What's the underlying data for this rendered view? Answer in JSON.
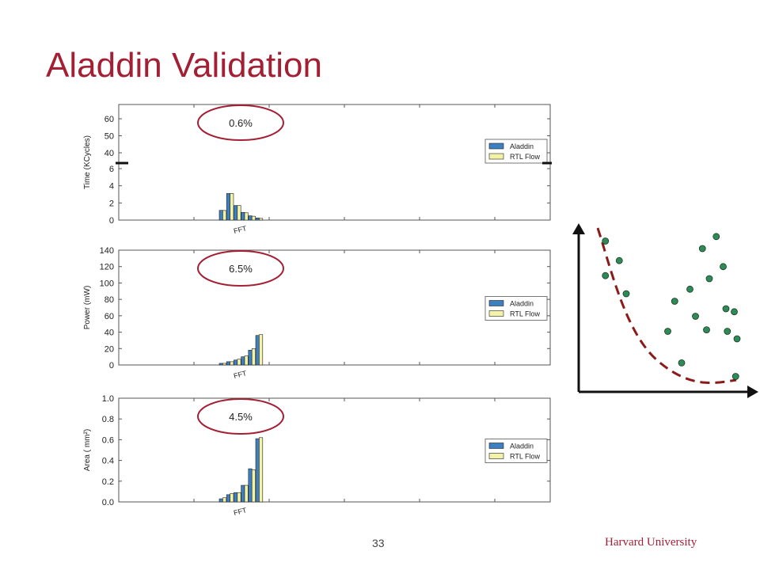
{
  "slide": {
    "title": "Aladdin Validation",
    "page_number": "33",
    "footer": "Harvard University"
  },
  "colors": {
    "aladdin": "#3d7fbf",
    "rtl": "#f2f2a8",
    "highlight": "#a31f34",
    "dot": "#2e8b57"
  },
  "chart_data": [
    {
      "type": "bar",
      "ylabel": "Time (KCycles)",
      "category_label": "FFT",
      "legend": [
        "Aladdin",
        "RTL Flow"
      ],
      "legend_position": "right",
      "annotation": "0.6%",
      "tick_labels": [
        "0",
        "2",
        "4",
        "6",
        "40",
        "50",
        "60"
      ],
      "series": [
        {
          "name": "Aladdin",
          "values": [
            6.2,
            3.1,
            1.7,
            0.9,
            0.5,
            0.25
          ]
        },
        {
          "name": "RTL Flow",
          "values": [
            6.1,
            3.1,
            1.7,
            0.85,
            0.45,
            0.2
          ]
        }
      ],
      "notes": "broken y-axis: lower segment 0-6, upper segment 40-60"
    },
    {
      "type": "bar",
      "ylabel": "Power (mW)",
      "category_label": "FFT",
      "legend": [
        "Aladdin",
        "RTL Flow"
      ],
      "legend_position": "right",
      "annotation": "6.5%",
      "tick_labels": [
        "0",
        "20",
        "40",
        "60",
        "80",
        "100",
        "120",
        "140"
      ],
      "ylim": [
        0,
        140
      ],
      "series": [
        {
          "name": "Aladdin",
          "values": [
            2,
            4,
            6,
            10,
            18,
            36
          ]
        },
        {
          "name": "RTL Flow",
          "values": [
            2,
            4,
            7,
            11,
            20,
            37
          ]
        }
      ]
    },
    {
      "type": "bar",
      "ylabel": "Area ( mm²)",
      "category_label": "FFT",
      "legend": [
        "Aladdin",
        "RTL Flow"
      ],
      "legend_position": "right",
      "annotation": "4.5%",
      "tick_labels": [
        "0.0",
        "0.2",
        "0.4",
        "0.6",
        "0.8",
        "1.0"
      ],
      "ylim": [
        0,
        1.0
      ],
      "series": [
        {
          "name": "Aladdin",
          "values": [
            0.03,
            0.07,
            0.09,
            0.16,
            0.32,
            0.61
          ]
        },
        {
          "name": "RTL Flow",
          "values": [
            0.04,
            0.08,
            0.09,
            0.16,
            0.31,
            0.62
          ]
        }
      ]
    },
    {
      "type": "scatter",
      "points": [
        [
          0.05,
          0.95
        ],
        [
          0.15,
          0.82
        ],
        [
          0.2,
          0.6
        ],
        [
          0.5,
          0.35
        ],
        [
          0.6,
          0.14
        ],
        [
          0.55,
          0.55
        ],
        [
          0.66,
          0.63
        ],
        [
          0.75,
          0.9
        ],
        [
          0.8,
          0.7
        ],
        [
          0.85,
          0.98
        ],
        [
          0.92,
          0.5
        ],
        [
          0.9,
          0.78
        ],
        [
          0.78,
          0.36
        ],
        [
          0.99,
          0.05
        ],
        [
          1.0,
          0.3
        ],
        [
          0.98,
          0.48
        ],
        [
          0.7,
          0.45
        ],
        [
          0.93,
          0.35
        ],
        [
          0.05,
          0.72
        ]
      ],
      "frontier": [
        [
          0.05,
          0.98
        ],
        [
          0.18,
          0.7
        ],
        [
          0.35,
          0.35
        ],
        [
          0.6,
          0.1
        ],
        [
          0.85,
          0.02
        ],
        [
          1.0,
          0.02
        ]
      ]
    }
  ]
}
